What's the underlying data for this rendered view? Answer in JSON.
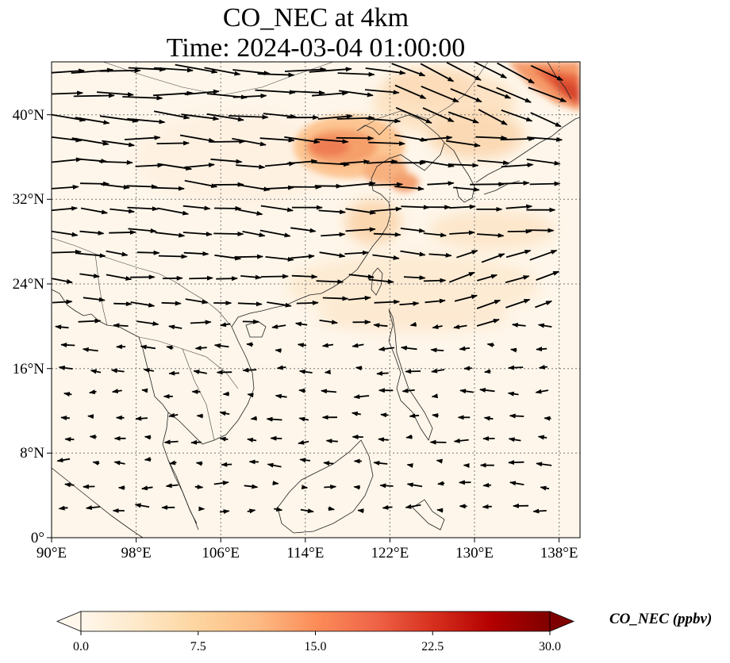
{
  "title": {
    "line1": "CO_NEC at 4km",
    "line2": "Time: 2024-03-04 01:00:00"
  },
  "map": {
    "type": "filled-contour map with wind vectors",
    "lon_range": [
      90,
      140
    ],
    "lat_range": [
      0,
      45
    ],
    "lon_ticks": [
      "90°E",
      "98°E",
      "106°E",
      "114°E",
      "122°E",
      "130°E",
      "138°E"
    ],
    "lat_ticks": [
      "0°",
      "8°N",
      "16°N",
      "24°N",
      "32°N",
      "40°N"
    ],
    "gridlines": "dotted",
    "features": [
      "coastlines",
      "country borders"
    ],
    "high_concentration_regions": [
      {
        "region": "North China Plain / Beijing-Tianjin-Hebei",
        "level": "high"
      },
      {
        "region": "Northeast corner near Sea of Japan / Hokkaido",
        "level": "high"
      },
      {
        "region": "Yangtze River Delta / East China Sea outflow",
        "level": "moderate"
      },
      {
        "region": "Southern China to Western Pacific band",
        "level": "low-moderate"
      }
    ],
    "wind_vectors": "prevailing westerlies north of ~20°N, weak easterly/variable flow south of ~16°N"
  },
  "colorbar": {
    "label": "CO_NEC (ppbv)",
    "min": 0.0,
    "max": 30.0,
    "ticks": [
      "0.0",
      "7.5",
      "15.0",
      "22.5",
      "30.0"
    ],
    "colormap": "OrRd",
    "extend": "both",
    "colors": [
      "#fff7ec",
      "#fee8c8",
      "#fdd49e",
      "#fdbb84",
      "#fc8d59",
      "#ef6548",
      "#d7301f",
      "#b30000",
      "#7f0000"
    ]
  }
}
